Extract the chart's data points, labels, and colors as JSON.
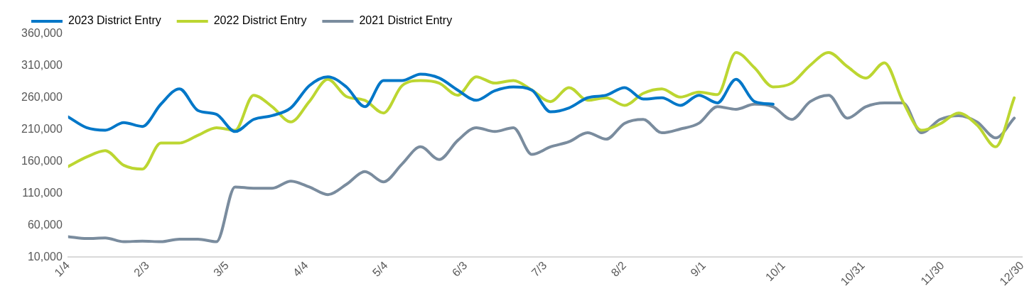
{
  "chart_data": {
    "type": "line",
    "x": [
      "--01-04",
      "--01-11",
      "--01-18",
      "--01-25",
      "--02-01",
      "--02-08",
      "--02-15",
      "--02-22",
      "--03-01",
      "--03-08",
      "--03-15",
      "--03-22",
      "--03-29",
      "--04-05",
      "--04-12",
      "--04-19",
      "--04-26",
      "--05-03",
      "--05-10",
      "--05-17",
      "--05-24",
      "--05-31",
      "--06-07",
      "--06-14",
      "--06-21",
      "--06-28",
      "--07-05",
      "--07-12",
      "--07-19",
      "--07-26",
      "--08-02",
      "--08-09",
      "--08-16",
      "--08-23",
      "--08-30",
      "--09-06",
      "--09-13",
      "--09-20",
      "--09-27",
      "--10-04",
      "--10-11",
      "--10-18",
      "--10-25",
      "--11-01",
      "--11-08",
      "--11-15",
      "--11-22",
      "--11-29",
      "--12-06",
      "--12-13",
      "--12-20",
      "--12-27"
    ],
    "series": [
      {
        "name": "2023 District Entry",
        "color": "#0077c8",
        "values": [
          230000,
          213000,
          209000,
          221000,
          215000,
          250000,
          274000,
          240000,
          234000,
          207000,
          226000,
          232000,
          244000,
          279000,
          293000,
          277000,
          246000,
          287000,
          287000,
          297000,
          291000,
          272000,
          256000,
          271000,
          277000,
          272000,
          238000,
          244000,
          260000,
          264000,
          276000,
          258000,
          260000,
          248000,
          264000,
          252000,
          289000,
          254000,
          250000,
          null,
          null,
          null,
          null,
          null,
          null,
          null,
          null,
          null,
          null,
          null,
          null,
          null
        ]
      },
      {
        "name": "2022 District Entry",
        "color": "#bcd631",
        "values": [
          152000,
          167000,
          177000,
          154000,
          148000,
          189000,
          189000,
          201000,
          213000,
          209000,
          264000,
          246000,
          222000,
          254000,
          289000,
          262000,
          256000,
          236000,
          279000,
          287000,
          283000,
          264000,
          293000,
          283000,
          287000,
          272000,
          254000,
          276000,
          256000,
          260000,
          248000,
          267000,
          274000,
          261000,
          269000,
          265000,
          331000,
          307000,
          277000,
          283000,
          311000,
          331000,
          309000,
          291000,
          315000,
          254000,
          209000,
          219000,
          236000,
          217000,
          183000,
          260000
        ]
      },
      {
        "name": "2021 District Entry",
        "color": "#7a8c9e",
        "values": [
          42000,
          39000,
          40000,
          34000,
          35000,
          34000,
          38000,
          38000,
          34000,
          120000,
          118000,
          118000,
          129000,
          120000,
          108000,
          124000,
          144000,
          128000,
          156000,
          183000,
          163000,
          193000,
          213000,
          207000,
          213000,
          171000,
          183000,
          191000,
          205000,
          195000,
          220000,
          226000,
          205000,
          211000,
          220000,
          246000,
          242000,
          250000,
          246000,
          226000,
          254000,
          264000,
          228000,
          246000,
          252000,
          252000,
          205000,
          226000,
          232000,
          222000,
          197000,
          228000
        ]
      }
    ],
    "xlim": [
      "--01-04",
      "--12-30"
    ],
    "xticks": [
      {
        "value": "--01-04",
        "label": "1/4"
      },
      {
        "value": "--02-03",
        "label": "2/3"
      },
      {
        "value": "--03-05",
        "label": "3/5"
      },
      {
        "value": "--04-04",
        "label": "4/4"
      },
      {
        "value": "--05-04",
        "label": "5/4"
      },
      {
        "value": "--06-03",
        "label": "6/3"
      },
      {
        "value": "--07-03",
        "label": "7/3"
      },
      {
        "value": "--08-02",
        "label": "8/2"
      },
      {
        "value": "--09-01",
        "label": "9/1"
      },
      {
        "value": "--10-01",
        "label": "10/1"
      },
      {
        "value": "--10-31",
        "label": "10/31"
      },
      {
        "value": "--11-30",
        "label": "11/30"
      },
      {
        "value": "--12-30",
        "label": "12/30"
      }
    ],
    "ylim": [
      10000,
      360000
    ],
    "yticks": [
      {
        "value": 10000,
        "label": "10,000"
      },
      {
        "value": 60000,
        "label": "60,000"
      },
      {
        "value": 110000,
        "label": "110,000"
      },
      {
        "value": 160000,
        "label": "160,000"
      },
      {
        "value": 210000,
        "label": "210,000"
      },
      {
        "value": 260000,
        "label": "260,000"
      },
      {
        "value": 310000,
        "label": "310,000"
      },
      {
        "value": 360000,
        "label": "360,000"
      }
    ],
    "grid": false,
    "legend": "top left",
    "marker": "none",
    "line_style": "solid"
  }
}
